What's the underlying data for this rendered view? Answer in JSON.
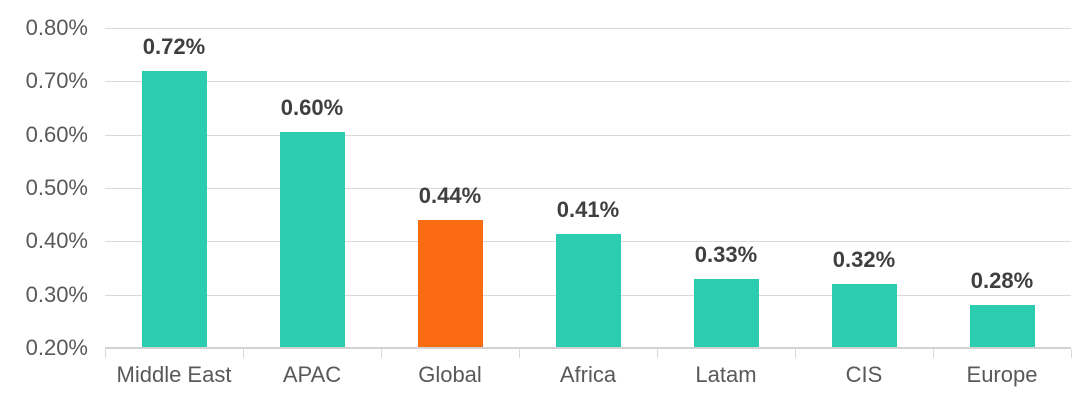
{
  "chart_data": {
    "type": "bar",
    "title": "",
    "xlabel": "",
    "ylabel": "",
    "categories": [
      "Middle East",
      "APAC",
      "Global",
      "Africa",
      "Latam",
      "CIS",
      "Europe"
    ],
    "values": [
      0.72,
      0.605,
      0.44,
      0.413,
      0.33,
      0.32,
      0.28
    ],
    "data_labels": [
      "0.72%",
      "0.60%",
      "0.44%",
      "0.41%",
      "0.33%",
      "0.32%",
      "0.28%"
    ],
    "bar_colors": [
      "#2cccb0",
      "#2cccb0",
      "#fa6b12",
      "#2cccb0",
      "#2cccb0",
      "#2cccb0",
      "#2cccb0"
    ],
    "ylim": [
      0.2,
      0.8
    ],
    "yticks": [
      0.2,
      0.3,
      0.4,
      0.5,
      0.6,
      0.7,
      0.8
    ],
    "ytick_labels": [
      "0.20%",
      "0.30%",
      "0.40%",
      "0.50%",
      "0.60%",
      "0.70%",
      "0.80%"
    ],
    "grid": true,
    "legend": false
  },
  "colors": {
    "bar_teal": "#2cccb0",
    "bar_highlight_orange": "#fa6b12",
    "gridline": "#d9d9d9",
    "axis_label_text": "#595959",
    "data_label_text": "#3f3f3f"
  }
}
